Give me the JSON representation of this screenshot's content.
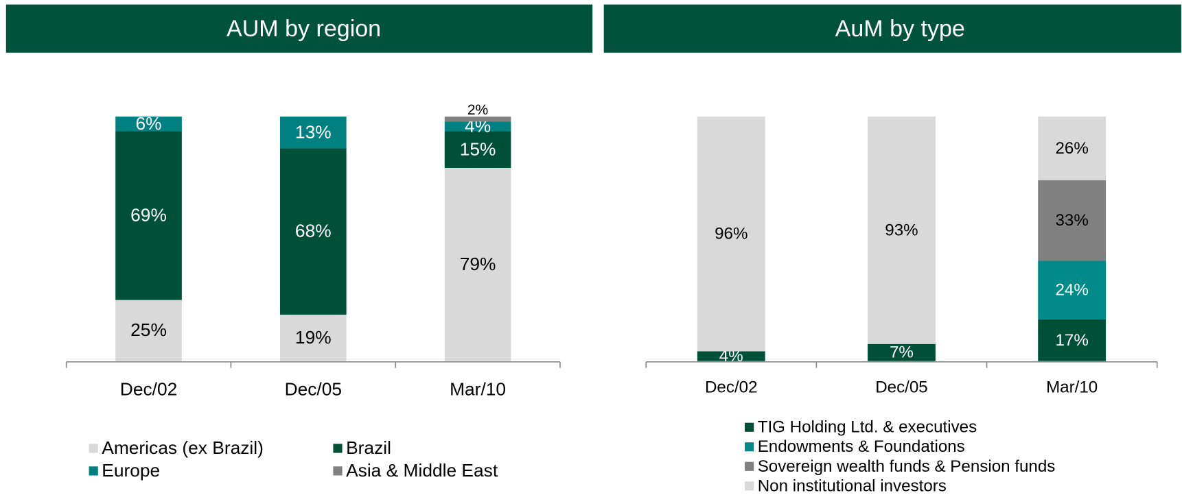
{
  "chart_data": [
    {
      "type": "bar",
      "stacked": true,
      "title": "AUM by region",
      "categories": [
        "Dec/02",
        "Dec/05",
        "Mar/10"
      ],
      "ylim": [
        0,
        100
      ],
      "legend": "bottom",
      "series": [
        {
          "name": "Americas (ex Brazil)",
          "color": "#d9d9d9",
          "values": [
            25,
            19,
            79
          ],
          "value_labels": [
            "25%",
            "19%",
            "79%"
          ]
        },
        {
          "name": "Brazil",
          "color": "#005038",
          "values": [
            69,
            68,
            15
          ],
          "value_labels": [
            "69%",
            "68%",
            "15%"
          ]
        },
        {
          "name": "Europe",
          "color": "#008080",
          "values": [
            6,
            13,
            4
          ],
          "value_labels": [
            "6%",
            "13%",
            "4%"
          ]
        },
        {
          "name": "Asia & Middle East",
          "color": "#808080",
          "values": [
            null,
            null,
            2
          ],
          "value_labels": [
            null,
            null,
            "2%"
          ]
        }
      ]
    },
    {
      "type": "bar",
      "stacked": true,
      "title": "AuM by type",
      "categories": [
        "Dec/02",
        "Dec/05",
        "Mar/10"
      ],
      "ylim": [
        0,
        100
      ],
      "legend": "bottom",
      "series": [
        {
          "name": "TIG Holding Ltd. & executives",
          "color": "#005038",
          "values": [
            4,
            7,
            17
          ],
          "value_labels": [
            "4%",
            "7%",
            "17%"
          ]
        },
        {
          "name": "Endowments & Foundations",
          "color": "#008b8b",
          "values": [
            null,
            null,
            24
          ],
          "value_labels": [
            null,
            null,
            "24%"
          ]
        },
        {
          "name": "Sovereign wealth funds & Pension funds",
          "color": "#808080",
          "values": [
            null,
            null,
            33
          ],
          "value_labels": [
            null,
            null,
            "33%"
          ]
        },
        {
          "name": "Non institutional investors",
          "color": "#d9d9d9",
          "values": [
            96,
            93,
            26
          ],
          "value_labels": [
            "96%",
            "93%",
            "26%"
          ]
        }
      ]
    }
  ]
}
